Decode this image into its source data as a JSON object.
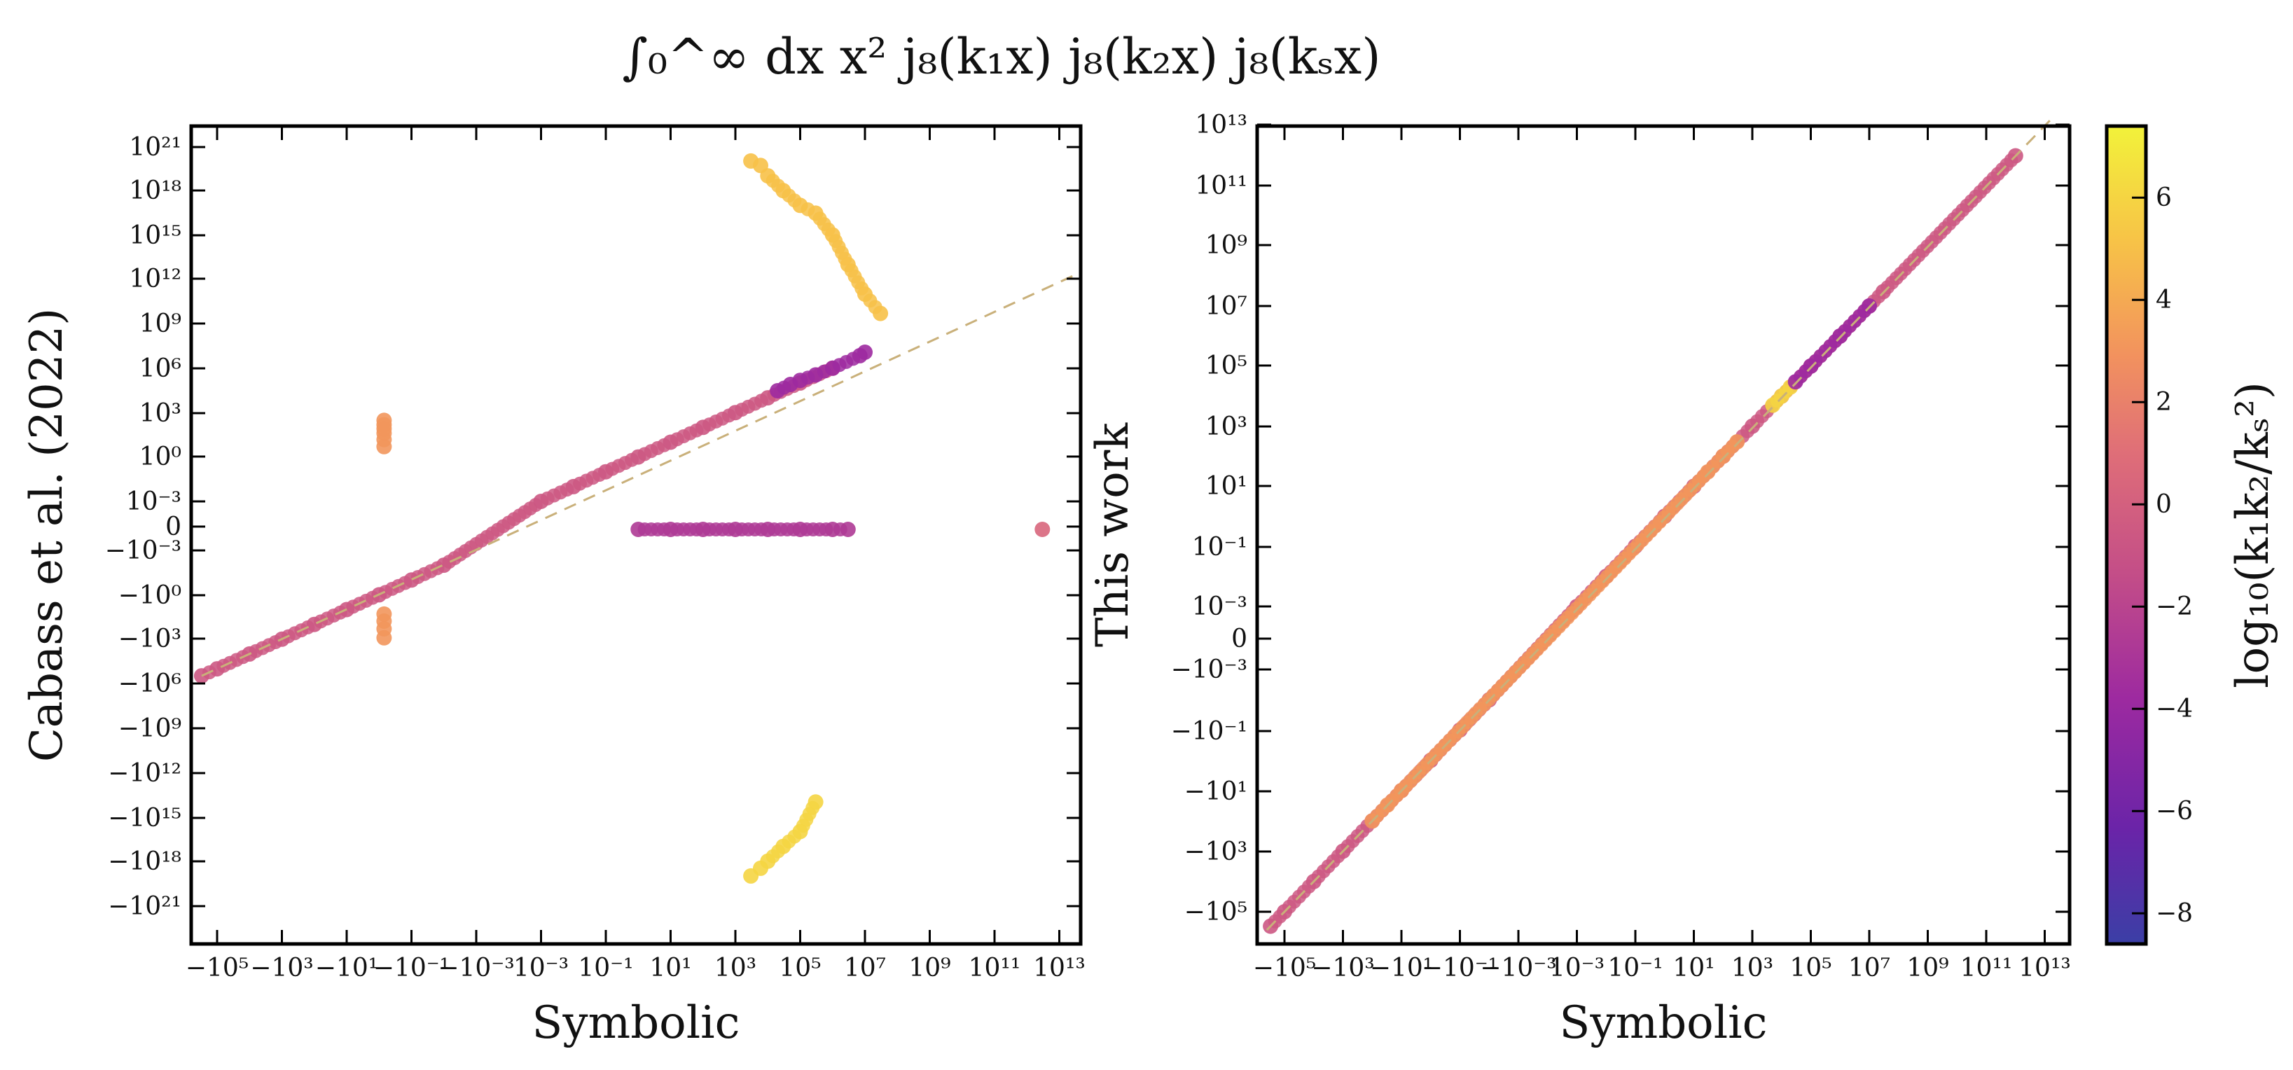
{
  "figure_title": "∫₀^∞ dx x² j₈(k₁x) j₈(k₂x) j₈(kₛx)",
  "chart_data": [
    {
      "type": "scatter",
      "name": "left-panel",
      "xlabel": "Symbolic",
      "ylabel": "Cabass et al. (2022)",
      "xscale": "symlog",
      "yscale": "symlog",
      "xticks": [
        "−10⁵",
        "−10³",
        "−10¹",
        "−10⁻¹",
        "−10⁻³",
        "10⁻³",
        "10⁻¹",
        "10¹",
        "10³",
        "10⁵",
        "10⁷",
        "10⁹",
        "10¹¹",
        "10¹³"
      ],
      "yticks": [
        "10²¹",
        "10¹⁸",
        "10¹⁵",
        "10¹²",
        "10⁹",
        "10⁶",
        "10³",
        "10⁰",
        "10⁻³",
        "0",
        "−10⁻³",
        "−10⁰",
        "−10³",
        "−10⁶",
        "−10⁹",
        "−10¹²",
        "−10¹⁵",
        "−10¹⁸",
        "−10²¹"
      ],
      "reference_line": "y = x (dashed)",
      "series": [
        {
          "name": "diagonal-band",
          "x": [
            -300000,
            -100000,
            -10000,
            -1000,
            -100,
            -10,
            -1,
            -0.1,
            -0.01,
            0.001,
            0.01,
            0.1,
            1,
            10,
            100,
            1000,
            10000,
            100000,
            1000000
          ],
          "y": [
            -300000,
            -100000,
            -10000,
            -1000,
            -100,
            -10,
            -1,
            -0.1,
            -0.01,
            0.001,
            0.01,
            0.1,
            1,
            10,
            100,
            1000,
            10000,
            100000,
            1000000
          ],
          "color_value": -1
        },
        {
          "name": "purple-upper",
          "x": [
            20000,
            50000,
            100000,
            300000,
            1000000,
            7000000,
            10000000
          ],
          "y": [
            30000,
            80000,
            150000,
            350000,
            1000000,
            7000000,
            12000000
          ],
          "color_value": -4
        },
        {
          "name": "orange-low-x-cluster",
          "x": [
            -0.7,
            -0.7,
            -0.7,
            -0.7,
            -0.7,
            -0.7
          ],
          "y": [
            5,
            15,
            40,
            80,
            150,
            300
          ],
          "color_value": 3
        },
        {
          "name": "orange-neg-cluster",
          "x": [
            -0.7,
            -0.7,
            -0.7,
            -0.7
          ],
          "y": [
            -20,
            -60,
            -200,
            -800
          ],
          "color_value": 3
        },
        {
          "name": "zero-row",
          "x": [
            1,
            10,
            100,
            1000,
            10000,
            100000,
            1000000,
            3000000
          ],
          "y": [
            0,
            0,
            0,
            0,
            0,
            0,
            0,
            0
          ],
          "color_value": -3
        },
        {
          "name": "yellow-upper-branch",
          "x": [
            3000,
            6000,
            10000,
            30000,
            100000,
            300000,
            1000000,
            3000000,
            10000000,
            30000000
          ],
          "y": [
            1e+20,
            5e+19,
            1e+19,
            1e+18,
            1e+17,
            3e+16,
            1000000000000000.0,
            10000000000000.0,
            100000000000.0,
            5000000000.0
          ],
          "color_value": 5
        },
        {
          "name": "yellow-lower-branch",
          "x": [
            3000,
            6000,
            10000,
            30000,
            100000,
            300000
          ],
          "y": [
            -1e+19,
            -3e+18,
            -1e+18,
            -1e+17,
            -1e+16,
            -100000000000000.0
          ],
          "color_value": 6
        },
        {
          "name": "outlier",
          "x": [
            3000000000000
          ],
          "y": [
            0
          ],
          "color_value": 0
        }
      ]
    },
    {
      "type": "scatter",
      "name": "right-panel",
      "xlabel": "Symbolic",
      "ylabel": "This work",
      "xscale": "symlog",
      "yscale": "symlog",
      "xticks": [
        "−10⁵",
        "−10³",
        "−10¹",
        "−10⁻¹",
        "−10⁻³",
        "10⁻³",
        "10⁻¹",
        "10¹",
        "10³",
        "10⁵",
        "10⁷",
        "10⁹",
        "10¹¹",
        "10¹³"
      ],
      "yticks": [
        "10¹³",
        "10¹¹",
        "10⁹",
        "10⁷",
        "10⁵",
        "10³",
        "10¹",
        "10⁻¹",
        "10⁻³",
        "0",
        "−10⁻³",
        "−10⁻¹",
        "−10¹",
        "−10³",
        "−10⁵"
      ],
      "reference_line": "y = x (dashed)",
      "series": [
        {
          "name": "diagonal-band",
          "x": [
            -300000,
            -100000,
            -10000,
            -1000,
            -100,
            -10,
            -1,
            -0.1,
            -0.01,
            0.001,
            0.01,
            0.1,
            1,
            10,
            100,
            1000,
            10000,
            100000,
            1000000,
            10000000,
            30000000,
            1000000000000
          ],
          "y": [
            -300000,
            -100000,
            -10000,
            -1000,
            -100,
            -10,
            -1,
            -0.1,
            -0.01,
            0.001,
            0.01,
            0.1,
            1,
            10,
            100,
            1000,
            10000,
            100000,
            1000000,
            10000000,
            30000000,
            1000000000000
          ],
          "color_value": -1
        },
        {
          "name": "orange-segment",
          "x": [
            -100,
            -30,
            -10,
            30,
            100,
            300
          ],
          "y": [
            -100,
            -30,
            -10,
            30,
            100,
            300
          ],
          "color_value": 3
        },
        {
          "name": "yellow-segment",
          "x": [
            5000,
            10000,
            20000
          ],
          "y": [
            5000,
            10000,
            20000
          ],
          "color_value": 6
        },
        {
          "name": "purple-segment",
          "x": [
            30000,
            100000,
            1000000,
            10000000
          ],
          "y": [
            30000,
            100000,
            1000000,
            10000000
          ],
          "color_value": -4
        }
      ]
    }
  ],
  "colorbar": {
    "label": "log₁₀(k₁k₂/kₛ²)",
    "ticks": [
      "6",
      "4",
      "2",
      "0",
      "−2",
      "−4",
      "−6",
      "−8"
    ],
    "range": [
      -8.6,
      7.4
    ],
    "colormap": [
      "#3b3fa6",
      "#6a24a8",
      "#9d2aa0",
      "#c34d88",
      "#df6e78",
      "#f2925e",
      "#f7c347",
      "#f2f23a"
    ]
  }
}
